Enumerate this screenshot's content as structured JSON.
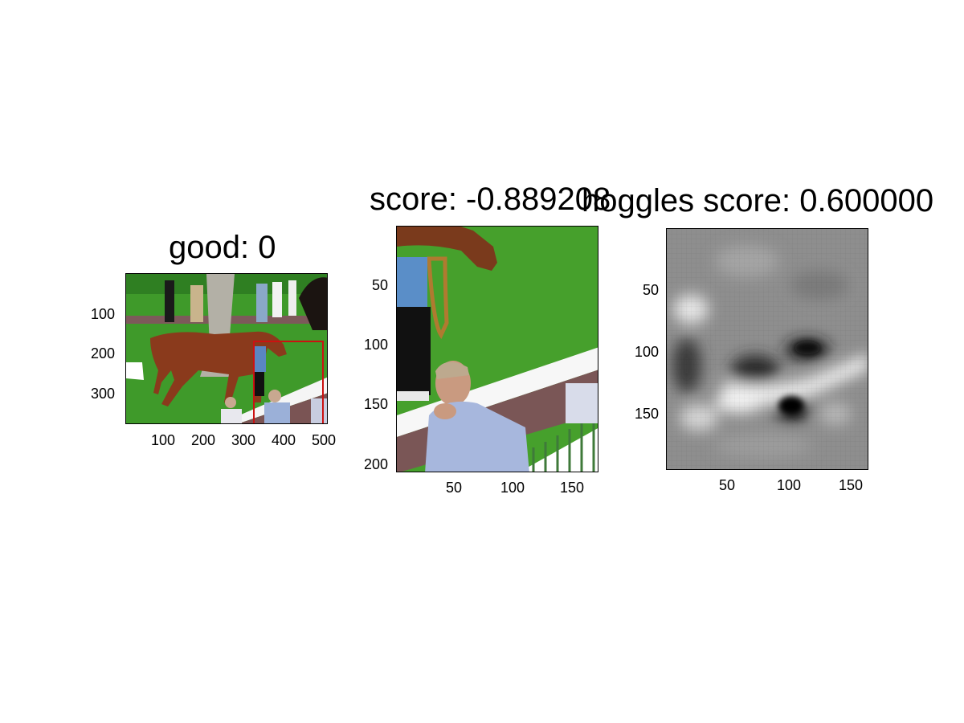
{
  "panels": [
    {
      "title": "good: 0",
      "yticks": [
        "100",
        "200",
        "300"
      ],
      "xticks": [
        "100",
        "200",
        "300",
        "400",
        "500"
      ],
      "image": "photo-horse-paddock-with-red-detection-box"
    },
    {
      "title": "score: -0.889208",
      "yticks": [
        "50",
        "100",
        "150",
        "200"
      ],
      "xticks": [
        "50",
        "100",
        "150"
      ],
      "image": "photo-crop-man-leaning-on-white-rail"
    },
    {
      "title": "hoggles score: 0.600000",
      "yticks": [
        "50",
        "100",
        "150"
      ],
      "xticks": [
        "50",
        "100",
        "150"
      ],
      "image": "grayscale-hoggles-visualization"
    }
  ],
  "colors": {
    "detection_box": "#cc1111",
    "grass": "#3f9a2a",
    "track": "#6e4a4a"
  }
}
